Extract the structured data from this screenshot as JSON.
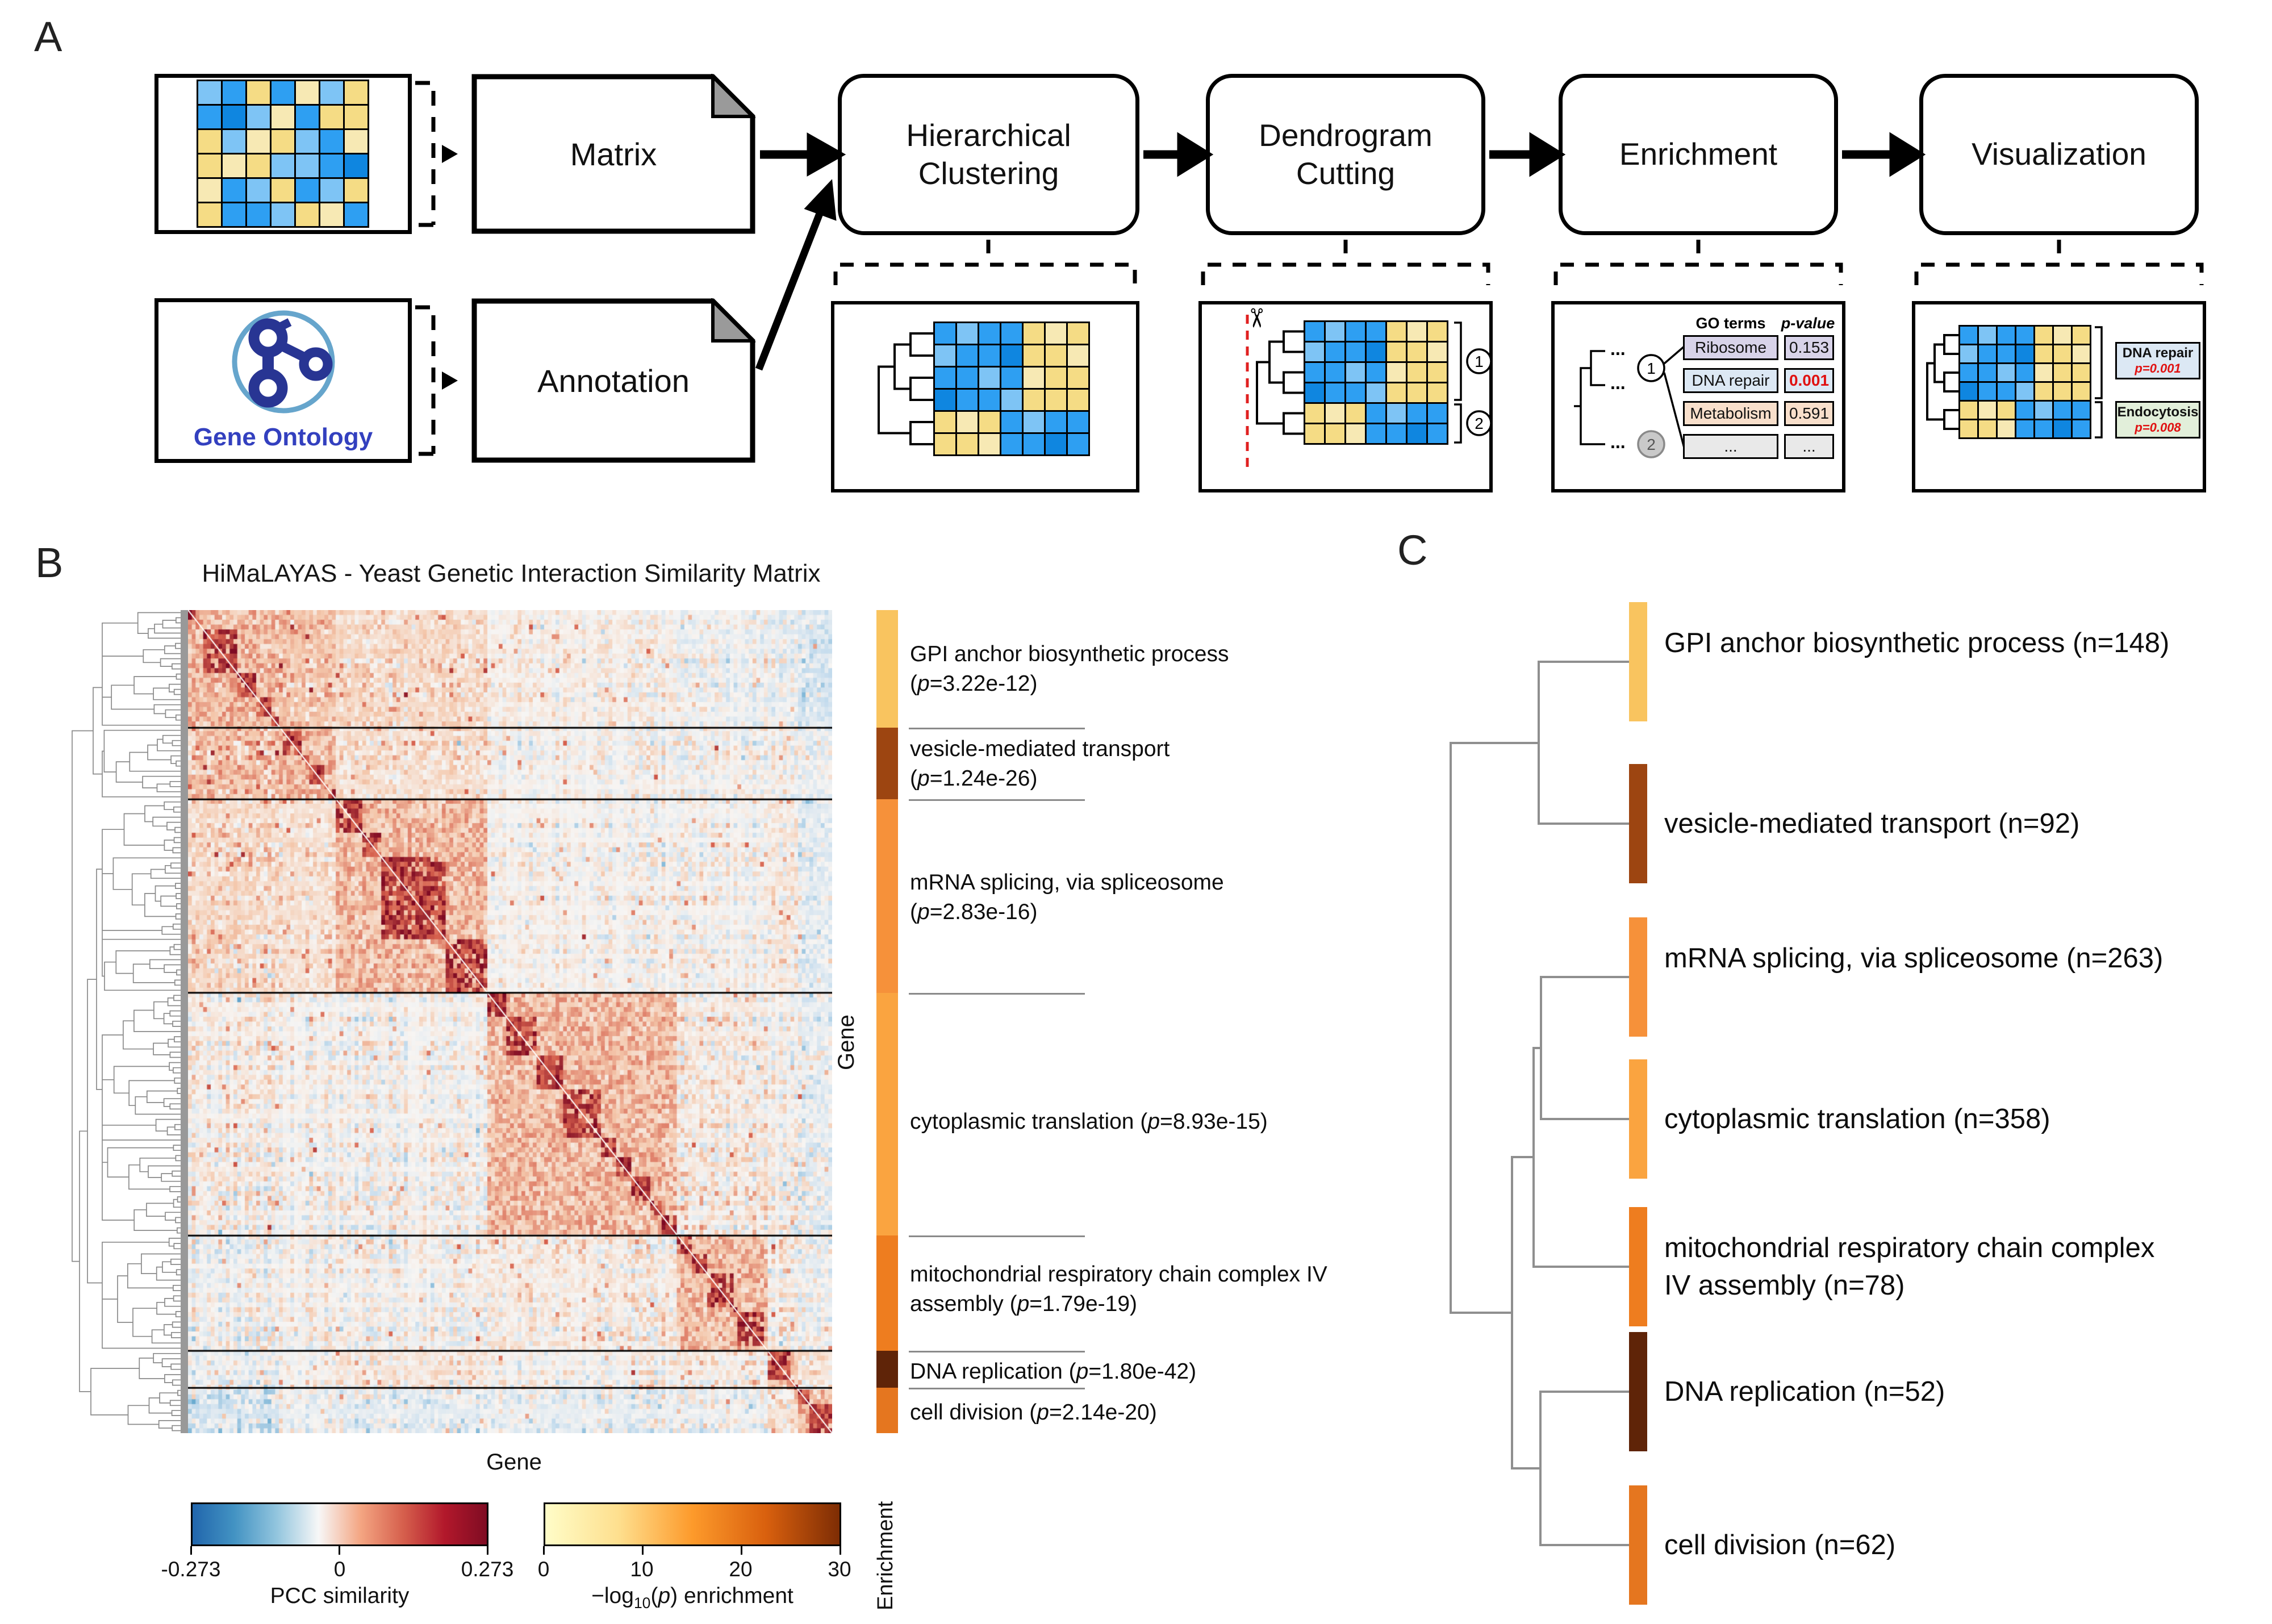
{
  "panel_a": {
    "label": "A",
    "matrix_doc_label": "Matrix",
    "annotation_doc_label": "Annotation",
    "go_caption": "Gene Ontology",
    "flow_boxes": [
      "Hierarchical Clustering",
      "Dendrogram Cutting",
      "Enrichment",
      "Visualization"
    ],
    "palette": {
      "B": "#2E9FF2",
      "D": "#0F86E0",
      "L": "#7EC4F5",
      "Y": "#F5DC85",
      "P": "#F7E9B4"
    },
    "icon_matrix_pattern": [
      "LBYBPLY",
      "BDLPBYY",
      "YLPYLBP",
      "YPYLLBD",
      "PBLYBLY",
      "YBBLYPB"
    ],
    "mini_matrix_pattern": [
      "BLBBYPY",
      "LBBDYYP",
      "BBLBPYY",
      "DBBLYYY",
      "YPYBLBB",
      "YYPBBDB"
    ],
    "mini_dc": {
      "cluster_numbers": [
        "1",
        "2"
      ]
    },
    "mini_en": {
      "ellipsis": "...",
      "cluster_numbers": [
        "1",
        "2"
      ],
      "headers": [
        "GO terms",
        "p-value"
      ],
      "rows": [
        {
          "term": "Ribosome",
          "value": "0.153",
          "bg": "#D8D3E9",
          "red": false
        },
        {
          "term": "DNA repair",
          "value": "0.001",
          "bg": "#DCE8F4",
          "red": true
        },
        {
          "term": "Metabolism",
          "value": "0.591",
          "bg": "#F8DFCB",
          "red": false
        },
        {
          "term": "...",
          "value": "...",
          "bg": "#E9E9E9",
          "red": false
        }
      ]
    },
    "mini_vi": {
      "labels": [
        {
          "name": "DNA repair",
          "p": "p=0.001",
          "bg": "#DCE8F4"
        },
        {
          "name": "Endocytosis",
          "p": "p=0.008",
          "bg": "#E2EFDA"
        }
      ]
    }
  },
  "panel_b": {
    "label": "B",
    "title": "HiMaLAYAS - Yeast Genetic Interaction Similarity Matrix",
    "xlabel": "Gene",
    "ylabel": "Gene",
    "strip_axis_label": "Enrichment",
    "clusters": [
      {
        "name": "GPI anchor biosynthetic process",
        "p": "(p=3.22e-12)",
        "n": "(n=148)",
        "color": "#F9C45F",
        "frac": [
          0,
          0.143
        ]
      },
      {
        "name": "vesicle-mediated transport",
        "p": "(p=1.24e-26)",
        "n": "(n=92)",
        "color": "#9D4511",
        "frac": [
          0.143,
          0.23
        ]
      },
      {
        "name": "mRNA splicing, via spliceosome",
        "p": "(p=2.83e-16)",
        "n": "(n=263)",
        "color": "#F6913A",
        "frac": [
          0.23,
          0.465
        ]
      },
      {
        "name": "cytoplasmic translation",
        "p": "(p=8.93e-15)",
        "n": "(n=358)",
        "color": "#FAA440",
        "frac": [
          0.465,
          0.76
        ]
      },
      {
        "name": "mitochondrial respiratory chain complex IV assembly",
        "p": "(p=1.79e-19)",
        "n": "(n=78)",
        "color": "#EE7D1F",
        "frac": [
          0.76,
          0.9
        ]
      },
      {
        "name": "DNA replication",
        "p": "(p=1.80e-42)",
        "n": "(n=52)",
        "color": "#5F2408",
        "frac": [
          0.9,
          0.945
        ]
      },
      {
        "name": "cell division",
        "p": "(p=2.14e-20)",
        "n": "(n=62)",
        "color": "#E5761F",
        "frac": [
          0.945,
          1
        ]
      }
    ],
    "colorbar_pcc": {
      "ticks": [
        "-0.273",
        "0",
        "0.273"
      ],
      "caption": "PCC similarity",
      "gradient": [
        "#2166AC",
        "#4393C3",
        "#92C5DE",
        "#F7F7F7",
        "#F4A582",
        "#D6604D",
        "#B2182B",
        "#7F0C23"
      ]
    },
    "colorbar_enr": {
      "ticks": [
        "0",
        "10",
        "20",
        "30"
      ],
      "caption": "−log10(p) enrichment",
      "gradient": [
        "#FFFDC8",
        "#FEDF8E",
        "#FD9A2B",
        "#D9600E",
        "#7E2D04"
      ]
    }
  },
  "panel_c": {
    "label": "C"
  },
  "chart_data": {
    "type": "heatmap",
    "title": "HiMaLAYAS - Yeast Genetic Interaction Similarity Matrix",
    "xlabel": "Gene",
    "ylabel": "Gene",
    "legend": [
      {
        "label": "PCC similarity",
        "range": [
          -0.273,
          0.273
        ],
        "colormap": "blue-white-red"
      },
      {
        "label": "-log10(p) enrichment",
        "range": [
          0,
          30
        ],
        "colormap": "yellow-orange-brown"
      }
    ],
    "clusters": [
      {
        "go_term": "GPI anchor biosynthetic process",
        "p_value": "3.22e-12",
        "n_genes": 148,
        "fraction": [
          0,
          0.143
        ]
      },
      {
        "go_term": "vesicle-mediated transport",
        "p_value": "1.24e-26",
        "n_genes": 92,
        "fraction": [
          0.143,
          0.23
        ]
      },
      {
        "go_term": "mRNA splicing, via spliceosome",
        "p_value": "2.83e-16",
        "n_genes": 263,
        "fraction": [
          0.23,
          0.465
        ]
      },
      {
        "go_term": "cytoplasmic translation",
        "p_value": "8.93e-15",
        "n_genes": 358,
        "fraction": [
          0.465,
          0.76
        ]
      },
      {
        "go_term": "mitochondrial respiratory chain complex IV assembly",
        "p_value": "1.79e-19",
        "n_genes": 78,
        "fraction": [
          0.76,
          0.9
        ]
      },
      {
        "go_term": "DNA replication",
        "p_value": "1.80e-42",
        "n_genes": 52,
        "fraction": [
          0.9,
          0.945
        ]
      },
      {
        "go_term": "cell division",
        "p_value": "2.14e-20",
        "n_genes": 62,
        "fraction": [
          0.945,
          1
        ]
      }
    ]
  }
}
